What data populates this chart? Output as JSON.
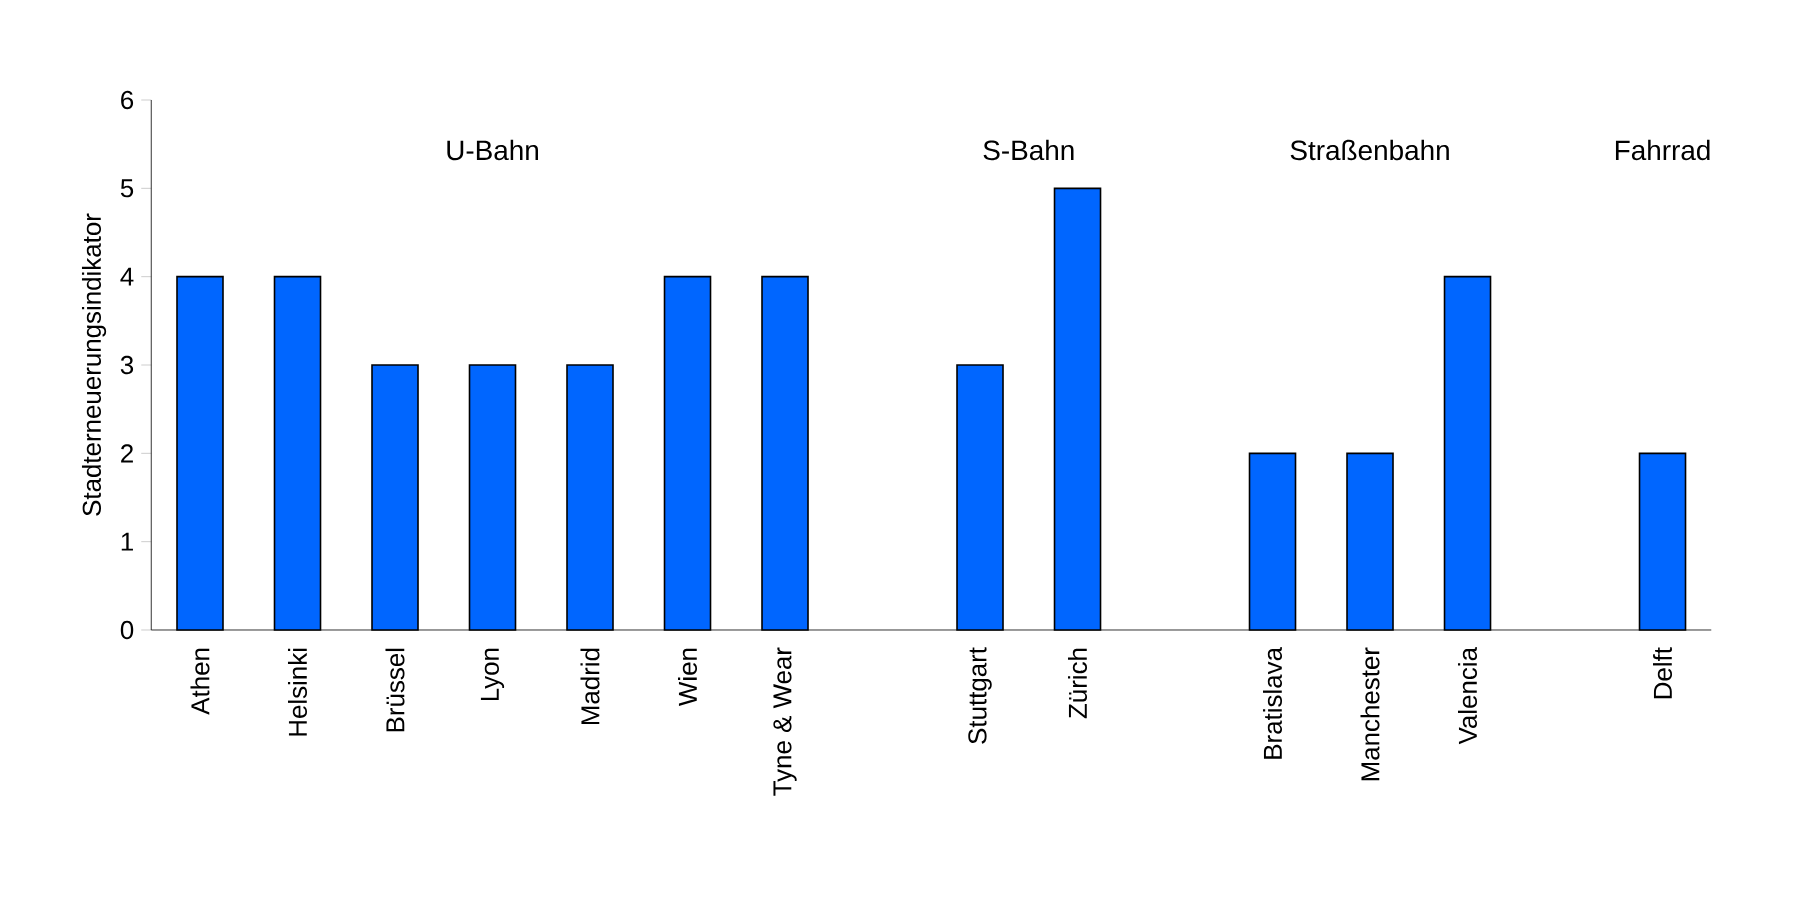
{
  "chart_data": {
    "type": "bar",
    "ylabel": "Stadterneuerungsindikator",
    "categories": [
      "Athen",
      "Helsinki",
      "Brüssel",
      "Lyon",
      "Madrid",
      "Wien",
      "Tyne & Wear",
      null,
      "Stuttgart",
      "Zürich",
      null,
      "Bratislava",
      "Manchester",
      "Valencia",
      null,
      "Delft"
    ],
    "values": [
      4,
      4,
      3,
      3,
      3,
      4,
      4,
      null,
      3,
      5,
      null,
      2,
      2,
      4,
      null,
      2
    ],
    "color": "#0066ff",
    "ylim": [
      0,
      6
    ],
    "yticks": [
      0,
      1,
      2,
      3,
      4,
      5,
      6
    ],
    "annotations": [
      "U-Bahn",
      "S-Bahn",
      "Straßenbahn",
      "Fahrrad"
    ],
    "grid": false
  }
}
